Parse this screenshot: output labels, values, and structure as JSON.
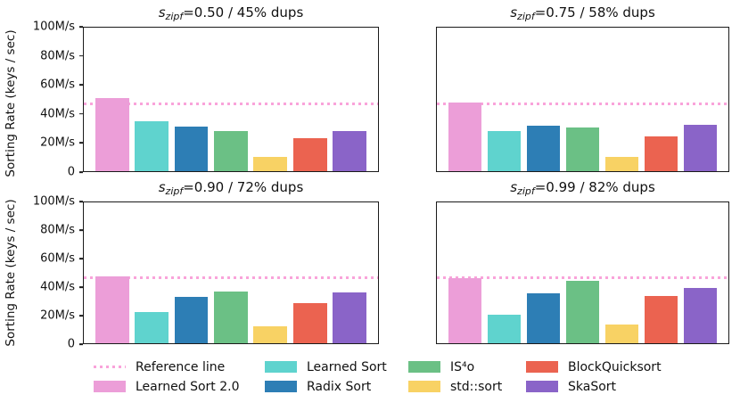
{
  "chart_data": {
    "type": "bar",
    "layout": "2x2-grid",
    "ylabel": "Sorting Rate (keys / sec)",
    "ylim": [
      0,
      100
    ],
    "grid": "off",
    "legend_position": "bottom",
    "yticks": [
      {
        "value": 0,
        "label": "0"
      },
      {
        "value": 20,
        "label": "20M/s"
      },
      {
        "value": 40,
        "label": "40M/s"
      },
      {
        "value": 60,
        "label": "60M/s"
      },
      {
        "value": 80,
        "label": "80M/s"
      },
      {
        "value": 100,
        "label": "100M/s"
      }
    ],
    "series_names": [
      "Learned Sort 2.0",
      "Learned Sort",
      "Radix Sort",
      "IS⁴o",
      "std::sort",
      "BlockQuicksort",
      "SkaSort"
    ],
    "series_slugs": [
      "learned-sort-2-0",
      "learned-sort",
      "radix-sort",
      "is4o",
      "std-sort",
      "blockquicksort",
      "skasort"
    ],
    "colors": [
      "#EC9ED8",
      "#5FD3CE",
      "#2D7EB5",
      "#6BC085",
      "#F8D264",
      "#EB6350",
      "#8A64C8"
    ],
    "reference_line": {
      "label": "Reference line",
      "value": 46.5,
      "color": "#F9A3DA",
      "style": "dotted"
    },
    "subplots": [
      {
        "title": {
          "var": "s",
          "sub": "zipf",
          "rest": "=0.50 / 45% dups"
        },
        "values": [
          51,
          35,
          31,
          28,
          10,
          23,
          28
        ]
      },
      {
        "title": {
          "var": "s",
          "sub": "zipf",
          "rest": "=0.75 / 58% dups"
        },
        "values": [
          48,
          28,
          31.5,
          30.5,
          10,
          24.5,
          32
        ]
      },
      {
        "title": {
          "var": "s",
          "sub": "zipf",
          "rest": "=0.90 / 72% dups"
        },
        "values": [
          47.5,
          22,
          33,
          36.5,
          12,
          28.5,
          36
        ]
      },
      {
        "title": {
          "var": "s",
          "sub": "zipf",
          "rest": "=0.99 / 82% dups"
        },
        "values": [
          46,
          20,
          35.5,
          44,
          13.5,
          33.5,
          39
        ]
      }
    ]
  },
  "legend": {
    "columns": [
      [
        {
          "label": "Reference line",
          "slug": "reference-line",
          "swatch": "dotted-line",
          "color": "#F9A3DA"
        },
        {
          "label": "Learned Sort 2.0",
          "slug": "learned-sort-2-0",
          "swatch": "rect",
          "color": "#EC9ED8"
        }
      ],
      [
        {
          "label": "Learned Sort",
          "slug": "learned-sort",
          "swatch": "rect",
          "color": "#5FD3CE"
        },
        {
          "label": "Radix Sort",
          "slug": "radix-sort",
          "swatch": "rect",
          "color": "#2D7EB5"
        }
      ],
      [
        {
          "label": "IS⁴o",
          "slug": "is4o",
          "swatch": "rect",
          "color": "#6BC085"
        },
        {
          "label": "std::sort",
          "slug": "std-sort",
          "swatch": "rect",
          "color": "#F8D264"
        }
      ],
      [
        {
          "label": "BlockQuicksort",
          "slug": "blockquicksort",
          "swatch": "rect",
          "color": "#EB6350"
        },
        {
          "label": "SkaSort",
          "slug": "skasort",
          "swatch": "rect",
          "color": "#8A64C8"
        }
      ]
    ]
  }
}
